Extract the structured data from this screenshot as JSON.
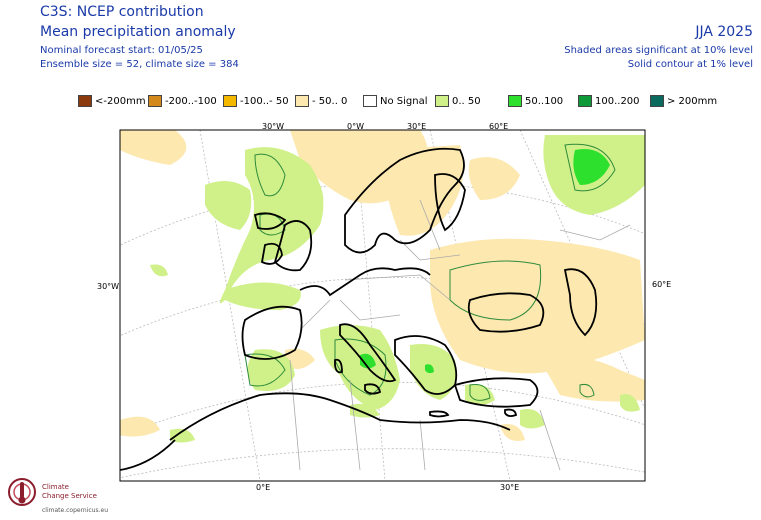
{
  "header": {
    "title": "C3S: NCEP contribution",
    "subtitle": "Mean precipitation anomaly",
    "forecast_start": "Nominal forecast start: 01/05/25",
    "ensemble": "Ensemble size = 52, climate size = 384",
    "season": "JJA 2025",
    "sig_note_1": "Shaded areas significant at 10% level",
    "sig_note_2": "Solid contour at 1% level"
  },
  "legend": [
    {
      "label": "<-200mm",
      "color": "#8b3a0e"
    },
    {
      "label": "-200..-100",
      "color": "#d4891c"
    },
    {
      "label": "-100..- 50",
      "color": "#f5b800"
    },
    {
      "label": "- 50.. 0",
      "color": "#fde8b0"
    },
    {
      "label": "No Signal",
      "color": "#ffffff"
    },
    {
      "label": "0.. 50",
      "color": "#d0f08a"
    },
    {
      "label": "50..100",
      "color": "#2ee02e"
    },
    {
      "label": "100..200",
      "color": "#0f9a3a"
    },
    {
      "label": "> 200mm",
      "color": "#0a6a5e"
    }
  ],
  "axes": {
    "top": [
      "30°W",
      "0°W",
      "30°E",
      "60°E"
    ],
    "left": "30°W",
    "right": "60°E",
    "bottom": [
      "0°E",
      "30°E"
    ]
  },
  "branding": {
    "line1": "Climate",
    "line2": "Change Service",
    "url": "climate.copernicus.eu"
  },
  "colors": {
    "header_text": "#1a3aa8",
    "coast": "#000000",
    "border": "#aaaaaa",
    "contour": "#2e8b3a",
    "grid": "#bbbbbb"
  }
}
